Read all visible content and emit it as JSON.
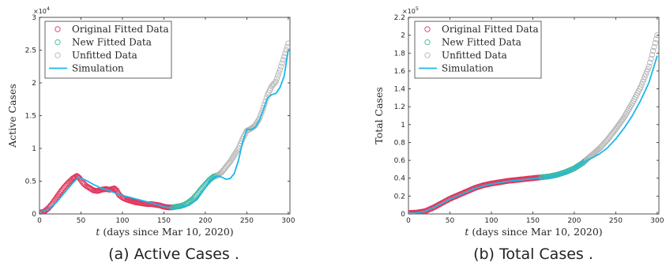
{
  "legend": {
    "items": [
      {
        "label": "Original Fitted Data",
        "marker": "circle",
        "color": "#e0345a"
      },
      {
        "label": "New Fitted Data",
        "marker": "circle",
        "color": "#3cb8a0"
      },
      {
        "label": "Unfitted Data",
        "marker": "circle",
        "color": "#b4b4b4"
      },
      {
        "label": "Simulation",
        "marker": "line",
        "color": "#1ab8e8"
      }
    ]
  },
  "chart_data": [
    {
      "type": "scatter",
      "panel": "a",
      "caption": "(a) Active Cases .",
      "xlabel_italic": "t",
      "xlabel_rest": " (days since Mar 10, 2020)",
      "ylabel": "Active Cases",
      "multiplier": "×10",
      "multiplier_exp": "4",
      "xlim": [
        0,
        302
      ],
      "ylim": [
        0,
        30000
      ],
      "xticks": [
        0,
        50,
        100,
        150,
        200,
        250,
        300
      ],
      "yticks": [
        0,
        5000,
        10000,
        15000,
        20000,
        25000,
        30000
      ],
      "ytick_labels": [
        "0",
        "0.5",
        "1",
        "1.5",
        "2",
        "2.5",
        "3"
      ],
      "original_fitted": {
        "x": [
          0,
          5,
          10,
          15,
          20,
          25,
          30,
          35,
          40,
          45,
          48,
          52,
          56,
          60,
          65,
          70,
          75,
          80,
          85,
          90,
          93,
          96,
          100,
          105,
          110,
          115,
          120,
          125,
          130,
          135,
          140,
          145,
          150,
          155,
          160
        ],
        "y": [
          200,
          300,
          800,
          1500,
          2400,
          3300,
          4100,
          4800,
          5400,
          5800,
          5500,
          4800,
          4300,
          4000,
          3600,
          3500,
          3700,
          3800,
          3700,
          3900,
          3600,
          2900,
          2500,
          2200,
          2000,
          1800,
          1700,
          1600,
          1500,
          1500,
          1400,
          1300,
          1100,
          1000,
          1000
        ]
      },
      "new_fitted": {
        "x": [
          160,
          165,
          170,
          175,
          180,
          185,
          190,
          195,
          200,
          205,
          210,
          215
        ],
        "y": [
          1000,
          1100,
          1200,
          1400,
          1800,
          2300,
          3000,
          3800,
          4500,
          5200,
          5700,
          5900
        ]
      },
      "unfitted": {
        "x": [
          215,
          220,
          225,
          230,
          235,
          240,
          245,
          250,
          255,
          260,
          265,
          270,
          275,
          280,
          285,
          290,
          295,
          300
        ],
        "y": [
          5900,
          6400,
          7200,
          8000,
          9000,
          10000,
          11500,
          12700,
          13000,
          13500,
          14500,
          16200,
          18200,
          19500,
          20200,
          22000,
          24000,
          26000
        ]
      },
      "simulation": {
        "x": [
          0,
          10,
          20,
          30,
          40,
          47,
          55,
          65,
          75,
          85,
          95,
          110,
          125,
          140,
          150,
          160,
          170,
          180,
          190,
          200,
          205,
          210,
          215,
          220,
          225,
          230,
          235,
          240,
          245,
          250,
          255,
          260,
          265,
          270,
          275,
          280,
          285,
          290,
          295,
          300
        ],
        "y": [
          300,
          700,
          1700,
          3200,
          4700,
          5600,
          5200,
          4500,
          3900,
          3500,
          3000,
          2500,
          2000,
          1500,
          1100,
          900,
          1000,
          1300,
          2200,
          4000,
          5000,
          5600,
          5800,
          5600,
          5300,
          5400,
          6200,
          8200,
          11000,
          12900,
          12900,
          13200,
          14300,
          15900,
          17700,
          18200,
          18400,
          19300,
          21000,
          25000
        ]
      }
    },
    {
      "type": "scatter",
      "panel": "b",
      "caption": "(b) Total Cases .",
      "xlabel_italic": "t",
      "xlabel_rest": " (days since Mar 10, 2020)",
      "ylabel": "Total Cases",
      "multiplier": "×10",
      "multiplier_exp": "5",
      "xlim": [
        0,
        302
      ],
      "ylim": [
        0,
        220000
      ],
      "xticks": [
        0,
        50,
        100,
        150,
        200,
        250,
        300
      ],
      "yticks": [
        0,
        20000,
        40000,
        60000,
        80000,
        100000,
        120000,
        140000,
        160000,
        180000,
        200000,
        220000
      ],
      "ytick_labels": [
        "0",
        "0.2",
        "0.4",
        "0.6",
        "0.8",
        "1",
        "1.2",
        "1.4",
        "1.6",
        "1.8",
        "2",
        "2.2"
      ],
      "original_fitted": {
        "x": [
          0,
          10,
          20,
          30,
          40,
          50,
          60,
          70,
          80,
          90,
          100,
          110,
          120,
          130,
          140,
          150,
          160
        ],
        "y": [
          1000,
          1500,
          3000,
          7000,
          12000,
          17000,
          21000,
          25000,
          29000,
          32000,
          34000,
          35500,
          37000,
          38000,
          39000,
          40000,
          41000
        ]
      },
      "new_fitted": {
        "x": [
          160,
          170,
          180,
          190,
          200,
          210,
          215
        ],
        "y": [
          41000,
          42000,
          44000,
          47000,
          51000,
          57000,
          61000
        ]
      },
      "unfitted": {
        "x": [
          215,
          220,
          230,
          240,
          250,
          260,
          270,
          280,
          290,
          300
        ],
        "y": [
          61000,
          65000,
          73000,
          83000,
          95000,
          108000,
          124000,
          142000,
          165000,
          200000
        ]
      },
      "simulation": {
        "x": [
          0,
          10,
          20,
          30,
          40,
          50,
          60,
          70,
          80,
          90,
          100,
          110,
          120,
          130,
          140,
          150,
          160,
          170,
          180,
          190,
          200,
          210,
          220,
          230,
          240,
          250,
          260,
          270,
          280,
          290,
          300
        ],
        "y": [
          500,
          1200,
          3000,
          7000,
          11500,
          16500,
          20500,
          24500,
          28500,
          31500,
          33500,
          35000,
          36500,
          37500,
          38500,
          39500,
          40500,
          41500,
          43500,
          46500,
          51000,
          57000,
          62000,
          67000,
          74000,
          84000,
          96000,
          110000,
          127000,
          147000,
          177000
        ]
      }
    }
  ]
}
